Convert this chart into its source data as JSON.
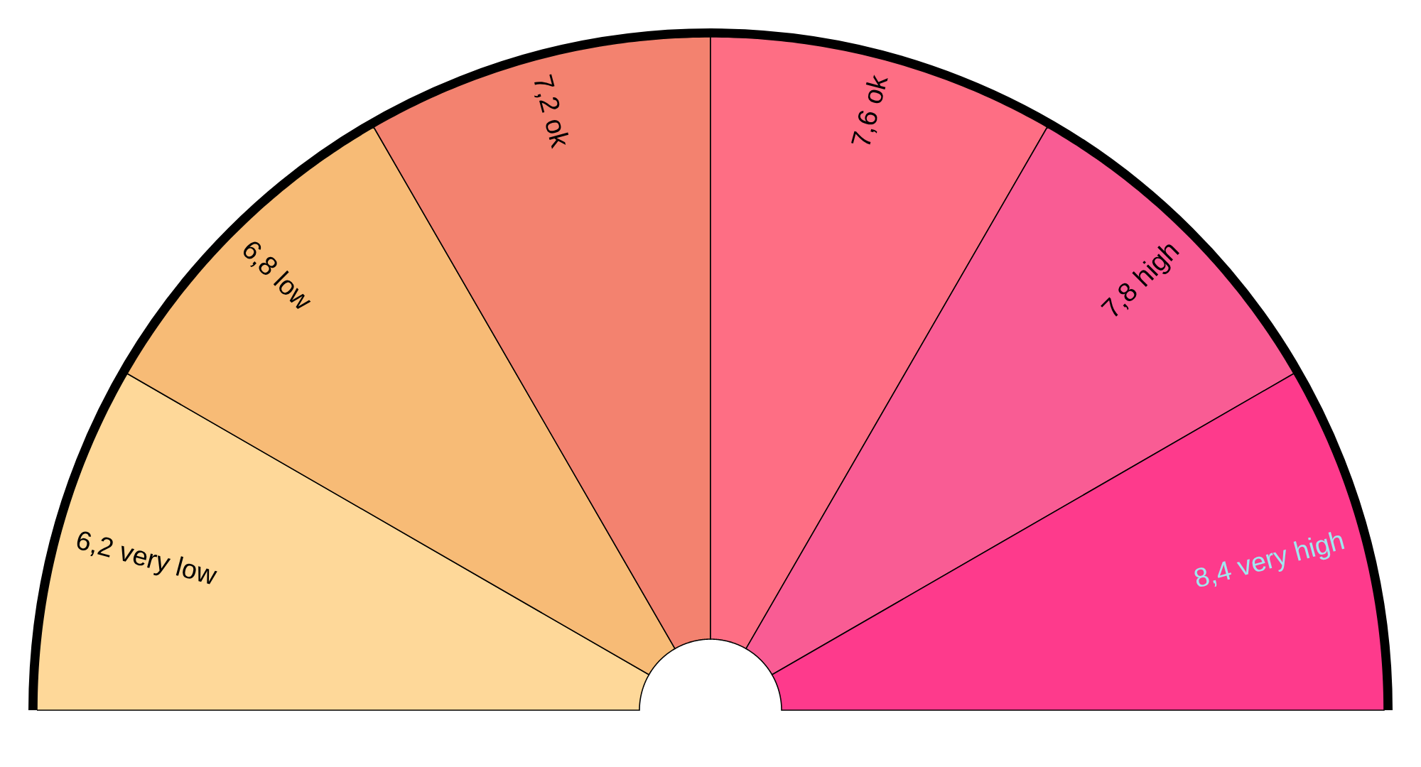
{
  "chart_data": {
    "type": "pie",
    "categories": [
      "6,2 very low",
      "6,8 low",
      "7,2 ok",
      "7,6 ok",
      "7,8 high",
      "8,4 very high"
    ],
    "values": [
      16.67,
      16.67,
      16.67,
      16.67,
      16.67,
      16.67
    ],
    "colors": [
      "#fed899",
      "#f7bb76",
      "#f3826f",
      "#fe6e84",
      "#f95c94",
      "#fe3a8c"
    ]
  }
}
